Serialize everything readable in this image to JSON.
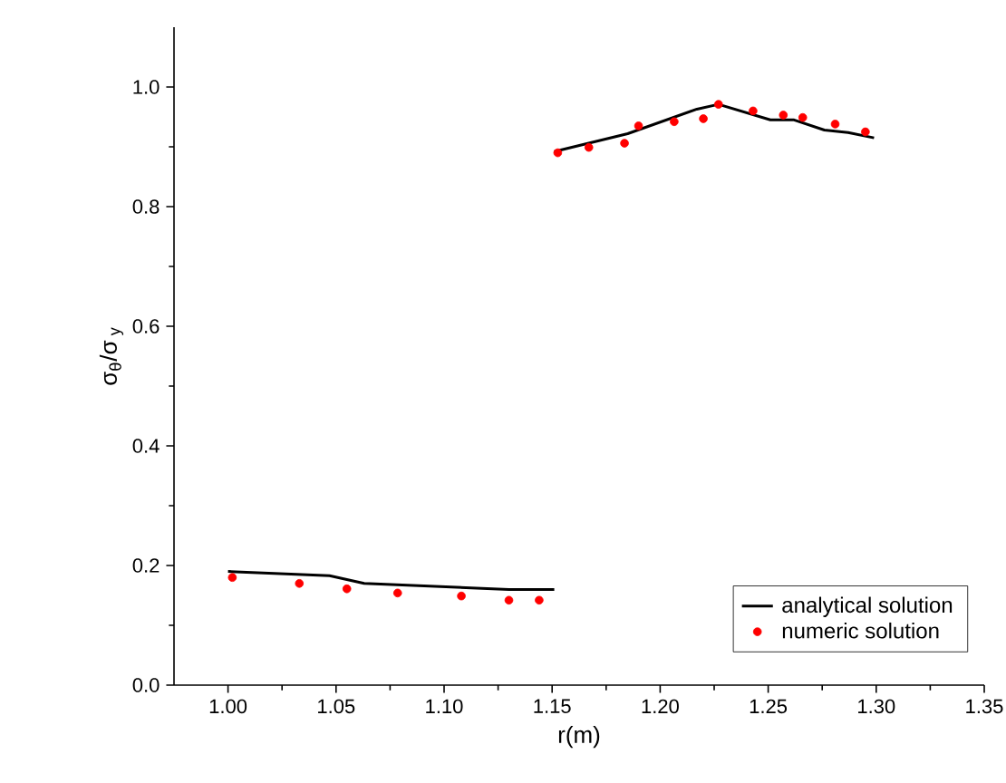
{
  "chart_data": {
    "type": "line",
    "xlabel": "r(m)",
    "ylabel": "σ$_{θ}$/σ$_{ y}$",
    "xlim": [
      0.975,
      1.35
    ],
    "xticks": [
      {
        "value": 1.0,
        "label": "1.00"
      },
      1.05,
      {
        "value": 1.1,
        "label": "1.10"
      },
      1.15,
      {
        "value": 1.2,
        "label": "1.20"
      },
      1.25,
      {
        "value": 1.3,
        "label": "1.30"
      },
      1.35
    ],
    "ylim": [
      0,
      1.1
    ],
    "yticks": [
      {
        "value": 0,
        "label": "0.0"
      },
      0.2,
      0.4,
      0.6,
      0.8,
      {
        "value": 1.0,
        "label": "1.0"
      }
    ],
    "grid": false,
    "legend": "bottom right",
    "series": [
      {
        "name": "analytical solution",
        "color": "#000000",
        "marker": "none",
        "line_style": "solid",
        "x": [
          1.0,
          1.047,
          1.063,
          1.13,
          1.151,
          null,
          1.151,
          1.185,
          1.217,
          1.227,
          1.251,
          1.262,
          1.276,
          1.287,
          1.299
        ],
        "values": [
          0.19,
          0.183,
          0.17,
          0.16,
          0.16,
          null,
          0.892,
          0.922,
          0.963,
          0.971,
          0.945,
          0.945,
          0.928,
          0.924,
          0.915
        ]
      },
      {
        "name": "numeric solution",
        "type": "scatter",
        "color": "#ff0000",
        "marker": "circle",
        "x": [
          1.002,
          1.033,
          1.055,
          1.0785,
          1.108,
          1.13,
          1.144,
          1.1526,
          1.167,
          1.1835,
          1.19,
          1.2065,
          1.22,
          1.227,
          1.243,
          1.257,
          1.266,
          1.281,
          1.295
        ],
        "values": [
          0.18,
          0.17,
          0.161,
          0.154,
          0.149,
          0.142,
          0.142,
          0.89,
          0.899,
          0.906,
          0.935,
          0.942,
          0.947,
          0.971,
          0.96,
          0.953,
          0.949,
          0.938,
          0.925
        ]
      }
    ]
  }
}
